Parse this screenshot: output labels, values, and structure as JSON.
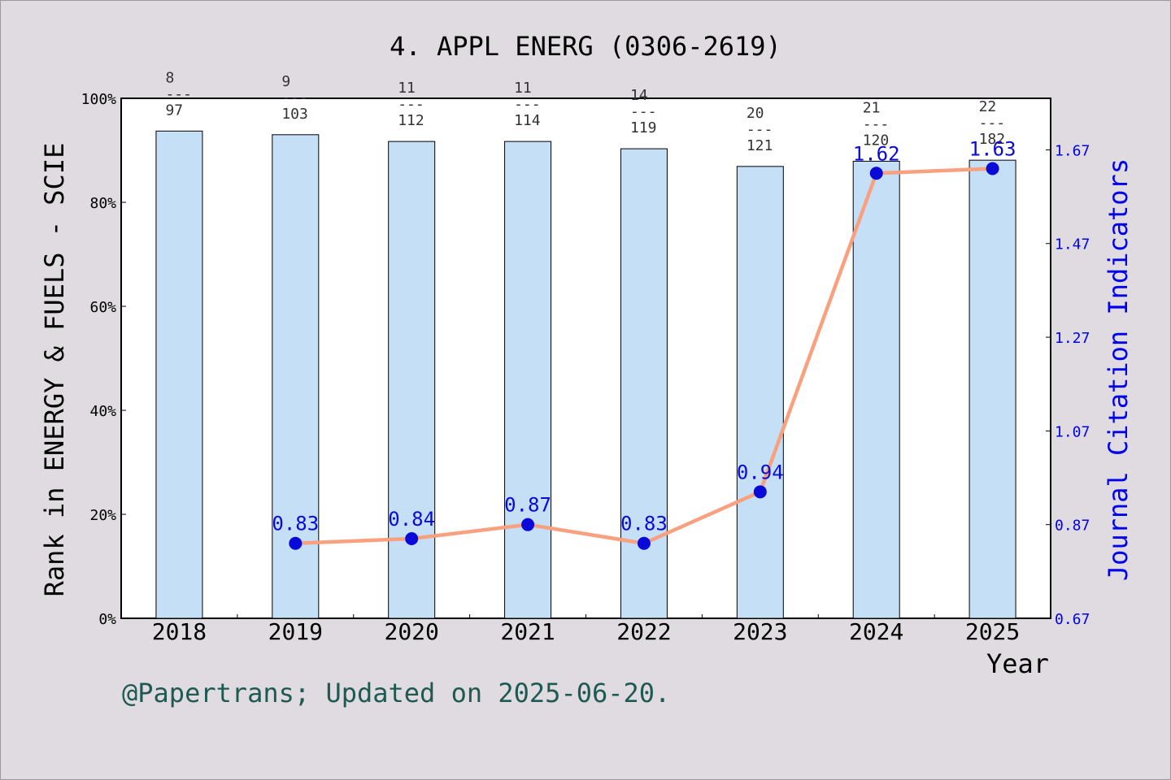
{
  "chart_data": {
    "type": "bar+line",
    "title": "4. APPL ENERG (0306-2619)",
    "xlabel": "Year",
    "ylabel_left": "Rank in ENERGY & FUELS - SCIE",
    "ylabel_right": "Journal Citation Indicators",
    "categories": [
      "2018",
      "2019",
      "2020",
      "2021",
      "2022",
      "2023",
      "2024",
      "2025"
    ],
    "y_left": {
      "range": [
        0,
        100
      ],
      "ticks": [
        "0%",
        "20%",
        "40%",
        "60%",
        "80%",
        "100%"
      ]
    },
    "y_right": {
      "range": [
        0.67,
        1.78
      ],
      "ticks": [
        0.67,
        0.87,
        1.07,
        1.27,
        1.47,
        1.67
      ],
      "tick_labels": [
        "0.67",
        "0.87",
        "1.07",
        "1.27",
        "1.47",
        "1.67"
      ]
    },
    "bars": {
      "name": "Rank percentile",
      "values": [
        93.7,
        93.0,
        91.7,
        91.7,
        90.3,
        86.9,
        87.9,
        88.1
      ],
      "rank_labels": [
        {
          "rank": "8",
          "sep": "---",
          "total": "97"
        },
        {
          "rank": "9",
          "sep": "---",
          "total": "103"
        },
        {
          "rank": "11",
          "sep": "---",
          "total": "112"
        },
        {
          "rank": "11",
          "sep": "---",
          "total": "114"
        },
        {
          "rank": "14",
          "sep": "---",
          "total": "119"
        },
        {
          "rank": "20",
          "sep": "---",
          "total": "121"
        },
        {
          "rank": "21",
          "sep": "---",
          "total": "120"
        },
        {
          "rank": "22",
          "sep": "---",
          "total": "182"
        }
      ]
    },
    "line": {
      "name": "JCI",
      "values": [
        null,
        0.83,
        0.84,
        0.87,
        0.83,
        0.94,
        1.62,
        1.63
      ],
      "labels": [
        null,
        "0.83",
        "0.84",
        "0.87",
        "0.83",
        "0.94",
        "1.62",
        "1.63"
      ]
    },
    "colors": {
      "background": "#dfdbe0",
      "plot_bg": "#ffffff",
      "bar_fill": "#c5dff7",
      "line": "#f9a07e",
      "marker": "#0a0ad8",
      "right_axis": "#0000ee",
      "footer": "#1f5a52"
    }
  },
  "footer_text": "@Papertrans; Updated on 2025-06-20."
}
